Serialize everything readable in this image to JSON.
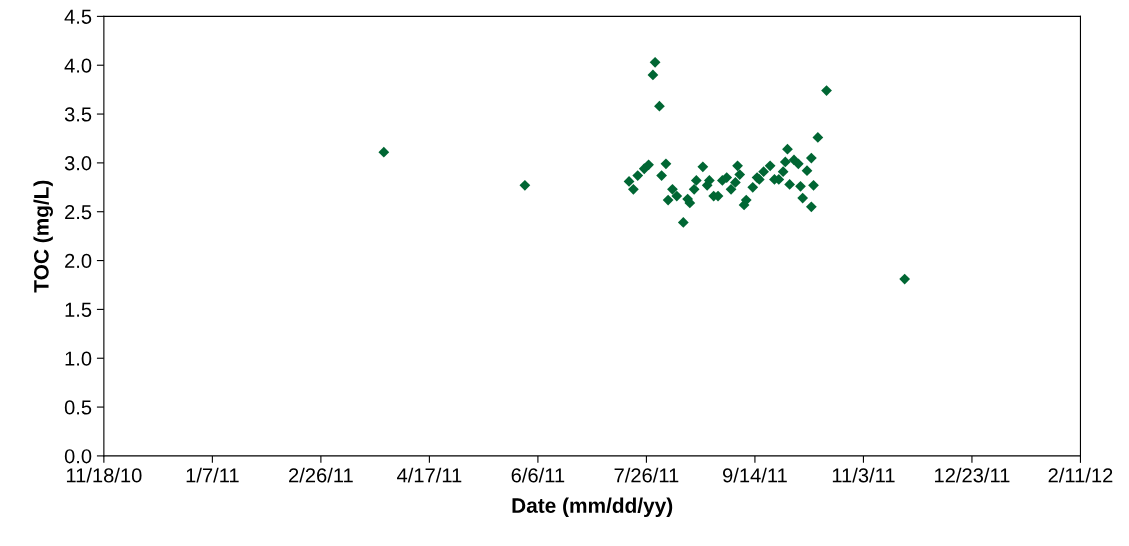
{
  "chart_data": {
    "type": "scatter",
    "xlabel": "Date (mm/dd/yy)",
    "ylabel": "TOC (mg/L)",
    "marker": "diamond",
    "grid": false,
    "legend": false,
    "xlim": [
      "2010-11-18",
      "2012-02-11"
    ],
    "xticks": [
      {
        "value": "2010-11-18",
        "label": "11/18/10"
      },
      {
        "value": "2011-01-07",
        "label": "1/7/11"
      },
      {
        "value": "2011-02-26",
        "label": "2/26/11"
      },
      {
        "value": "2011-04-17",
        "label": "4/17/11"
      },
      {
        "value": "2011-06-06",
        "label": "6/6/11"
      },
      {
        "value": "2011-07-26",
        "label": "7/26/11"
      },
      {
        "value": "2011-09-14",
        "label": "9/14/11"
      },
      {
        "value": "2011-11-03",
        "label": "11/3/11"
      },
      {
        "value": "2011-12-23",
        "label": "12/23/11"
      },
      {
        "value": "2012-02-11",
        "label": "2/11/12"
      }
    ],
    "ylim": [
      0,
      4.5
    ],
    "yticks": [
      {
        "value": 0,
        "label": "0.0"
      },
      {
        "value": 0.5,
        "label": "0.5"
      },
      {
        "value": 1,
        "label": "1.0"
      },
      {
        "value": 1.5,
        "label": "1.5"
      },
      {
        "value": 2,
        "label": "2.0"
      },
      {
        "value": 2.5,
        "label": "2.5"
      },
      {
        "value": 3,
        "label": "3.0"
      },
      {
        "value": 3.5,
        "label": "3.5"
      },
      {
        "value": 4,
        "label": "4.0"
      },
      {
        "value": 4.5,
        "label": "4.5"
      }
    ],
    "series": [
      {
        "color": "#006633",
        "x": [
          "2011-03-27",
          "2011-05-31",
          "2011-07-18",
          "2011-07-20",
          "2011-07-22",
          "2011-07-25",
          "2011-07-27",
          "2011-07-29",
          "2011-07-30",
          "2011-08-01",
          "2011-08-02",
          "2011-08-04",
          "2011-08-05",
          "2011-08-07",
          "2011-08-09",
          "2011-08-12",
          "2011-08-14",
          "2011-08-15",
          "2011-08-17",
          "2011-08-18",
          "2011-08-21",
          "2011-08-23",
          "2011-08-24",
          "2011-08-26",
          "2011-08-28",
          "2011-08-30",
          "2011-09-01",
          "2011-09-03",
          "2011-09-05",
          "2011-09-06",
          "2011-09-07",
          "2011-09-09",
          "2011-09-10",
          "2011-09-13",
          "2011-09-15",
          "2011-09-16",
          "2011-09-18",
          "2011-09-21",
          "2011-09-23",
          "2011-09-25",
          "2011-09-27",
          "2011-09-28",
          "2011-09-29",
          "2011-09-30",
          "2011-10-02",
          "2011-10-04",
          "2011-10-05",
          "2011-10-06",
          "2011-10-08",
          "2011-10-10",
          "2011-10-10",
          "2011-10-11",
          "2011-10-13",
          "2011-10-17",
          "2011-11-22"
        ],
        "values": [
          3.11,
          2.77,
          2.81,
          2.73,
          2.87,
          2.94,
          2.98,
          3.9,
          4.03,
          3.58,
          2.87,
          2.99,
          2.62,
          2.73,
          2.66,
          2.39,
          2.63,
          2.59,
          2.73,
          2.82,
          2.96,
          2.77,
          2.82,
          2.66,
          2.66,
          2.82,
          2.85,
          2.73,
          2.8,
          2.97,
          2.88,
          2.57,
          2.62,
          2.75,
          2.85,
          2.83,
          2.91,
          2.97,
          2.83,
          2.83,
          2.91,
          3.01,
          3.14,
          2.78,
          3.03,
          2.99,
          2.76,
          2.64,
          2.92,
          3.05,
          2.55,
          2.77,
          3.26,
          3.74,
          1.81
        ]
      }
    ]
  }
}
